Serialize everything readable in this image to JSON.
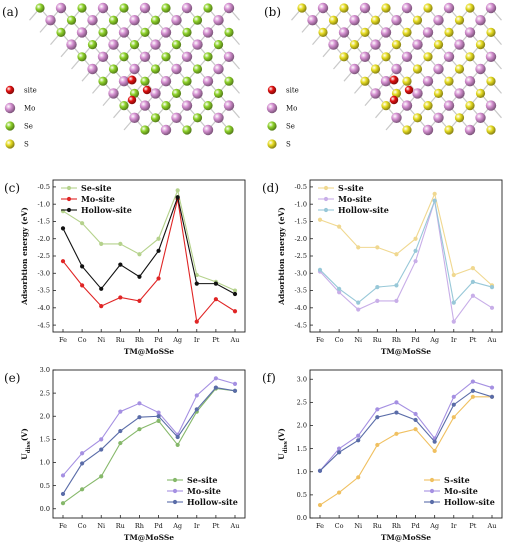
{
  "panels": [
    {
      "letter": "(a)",
      "legend": [
        "site",
        "Mo",
        "Se",
        "S"
      ]
    },
    {
      "letter": "(b)",
      "legend": [
        "site",
        "Mo",
        "Se",
        "S"
      ]
    }
  ],
  "colors": {
    "site": "#e01010",
    "Mo": "#d48fd0",
    "Se": "#8ed22a",
    "S": "#e6dc22"
  },
  "chart_data": [
    {
      "letter": "(c)",
      "type": "line",
      "categories": [
        "Fe",
        "Co",
        "Ni",
        "Ru",
        "Rh",
        "Pd",
        "Ag",
        "Ir",
        "Pt",
        "Au"
      ],
      "xlabel": "TM@MoSSe",
      "ylabel": "Adsorbtion energy (eV)",
      "ylim": [
        -4.7,
        -0.3
      ],
      "yticks": [
        -0.5,
        -1.0,
        -1.5,
        -2.0,
        -2.5,
        -3.0,
        -3.5,
        -4.0,
        -4.5
      ],
      "legend_position": "top-left",
      "series": [
        {
          "name": "Se-site",
          "color": "#b5d28c",
          "values": [
            -1.2,
            -1.55,
            -2.15,
            -2.15,
            -2.45,
            -2.0,
            -0.6,
            -3.05,
            -3.25,
            -3.5
          ]
        },
        {
          "name": "Mo-site",
          "color": "#e02525",
          "values": [
            -2.65,
            -3.35,
            -3.95,
            -3.7,
            -3.8,
            -3.15,
            -0.85,
            -4.4,
            -3.75,
            -4.1
          ]
        },
        {
          "name": "Hollow-site",
          "color": "#111111",
          "values": [
            -1.7,
            -2.8,
            -3.45,
            -2.75,
            -3.1,
            -2.35,
            -0.8,
            -3.3,
            -3.3,
            -3.6
          ]
        }
      ]
    },
    {
      "letter": "(d)",
      "type": "line",
      "categories": [
        "Fe",
        "Co",
        "Ni",
        "Ru",
        "Rh",
        "Pd",
        "Ag",
        "Ir",
        "Pt",
        "Au"
      ],
      "xlabel": "TM@MoSSe",
      "ylabel": "Adsorbtion energy (eV)",
      "ylim": [
        -4.7,
        -0.3
      ],
      "yticks": [
        -0.5,
        -1.0,
        -1.5,
        -2.0,
        -2.5,
        -3.0,
        -3.5,
        -4.0,
        -4.5
      ],
      "legend_position": "top-left",
      "series": [
        {
          "name": "S-site",
          "color": "#f0d890",
          "values": [
            -1.45,
            -1.65,
            -2.25,
            -2.25,
            -2.45,
            -2.0,
            -0.7,
            -3.05,
            -2.85,
            -3.35
          ]
        },
        {
          "name": "Mo-site",
          "color": "#c8aee8",
          "values": [
            -2.95,
            -3.55,
            -4.05,
            -3.8,
            -3.8,
            -2.65,
            -0.9,
            -4.4,
            -3.65,
            -4.0
          ]
        },
        {
          "name": "Hollow-site",
          "color": "#98c8d8",
          "values": [
            -2.9,
            -3.45,
            -3.85,
            -3.4,
            -3.35,
            -2.35,
            -0.9,
            -3.85,
            -3.25,
            -3.4
          ]
        }
      ]
    },
    {
      "letter": "(e)",
      "type": "line",
      "categories": [
        "Fe",
        "Co",
        "Ni",
        "Ru",
        "Rh",
        "Pd",
        "Ag",
        "Ir",
        "Pt",
        "Au"
      ],
      "xlabel": "TM@MoSSe",
      "ylabel": "U",
      "ylabel_sub": "diss",
      "ylabel_unit": "(V)",
      "ylim": [
        -0.2,
        3.0
      ],
      "yticks": [
        0.0,
        0.5,
        1.0,
        1.5,
        2.0,
        2.5,
        3.0
      ],
      "legend_position": "bottom-right",
      "series": [
        {
          "name": "Se-site",
          "color": "#86b86a",
          "values": [
            0.12,
            0.42,
            0.7,
            1.42,
            1.72,
            1.9,
            1.38,
            2.1,
            2.6,
            2.55
          ]
        },
        {
          "name": "Mo-site",
          "color": "#a590e2",
          "values": [
            0.72,
            1.2,
            1.5,
            2.1,
            2.28,
            2.08,
            1.6,
            2.45,
            2.82,
            2.7
          ]
        },
        {
          "name": "Hollow-site",
          "color": "#5a6ca8",
          "values": [
            0.32,
            0.98,
            1.28,
            1.68,
            1.98,
            2.0,
            1.55,
            2.15,
            2.62,
            2.55
          ]
        }
      ]
    },
    {
      "letter": "(f)",
      "type": "line",
      "categories": [
        "Fe",
        "Co",
        "Ni",
        "Ru",
        "Rh",
        "Pd",
        "Ag",
        "Ir",
        "Pt",
        "Au"
      ],
      "xlabel": "TM@MoSSe",
      "ylabel": "U",
      "ylabel_sub": "diss",
      "ylabel_unit": "(V)",
      "ylim": [
        0.0,
        3.2
      ],
      "yticks": [
        0.0,
        0.5,
        1.0,
        1.5,
        2.0,
        2.5,
        3.0
      ],
      "legend_position": "bottom-right",
      "series": [
        {
          "name": "S-site",
          "color": "#f0c060",
          "values": [
            0.28,
            0.55,
            0.88,
            1.58,
            1.82,
            1.92,
            1.45,
            2.18,
            2.62,
            2.62
          ]
        },
        {
          "name": "Mo-site",
          "color": "#a590e2",
          "values": [
            1.02,
            1.5,
            1.78,
            2.35,
            2.5,
            2.25,
            1.72,
            2.62,
            2.95,
            2.82
          ]
        },
        {
          "name": "Hollow-site",
          "color": "#5a6ca8",
          "values": [
            1.02,
            1.42,
            1.68,
            2.18,
            2.28,
            2.12,
            1.65,
            2.45,
            2.75,
            2.62
          ]
        }
      ]
    }
  ]
}
